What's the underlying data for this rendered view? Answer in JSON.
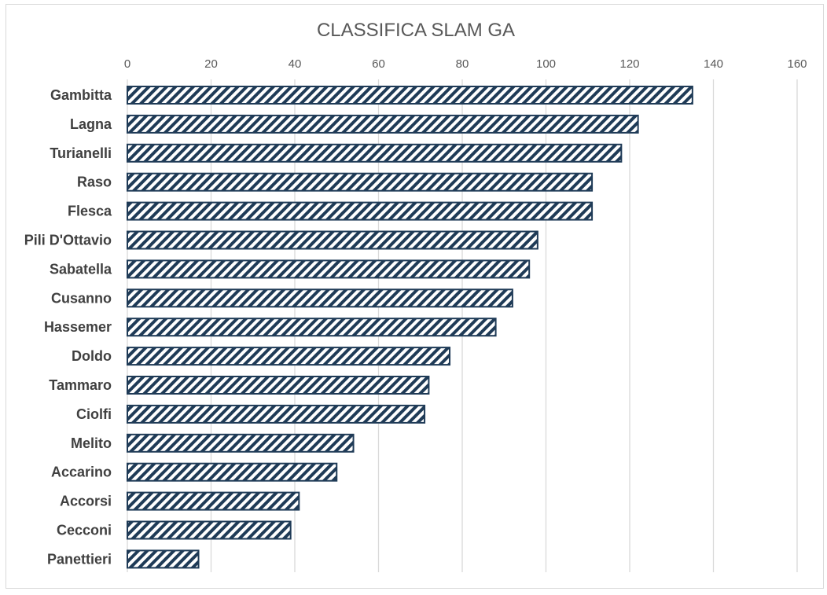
{
  "chart_data": {
    "type": "bar",
    "orientation": "horizontal",
    "title": "CLASSIFICA SLAM GA",
    "xlabel": "",
    "ylabel": "",
    "xlim": [
      0,
      160
    ],
    "x_ticks": [
      0,
      20,
      40,
      60,
      80,
      100,
      120,
      140,
      160
    ],
    "x_axis_position": "top",
    "grid": true,
    "legend": "none",
    "categories": [
      "Gambitta",
      "Lagna",
      "Turianelli",
      "Raso",
      "Flesca",
      "Pili D'Ottavio",
      "Sabatella",
      "Cusanno",
      "Hassemer",
      "Doldo",
      "Tammaro",
      "Ciolfi",
      "Melito",
      "Accarino",
      "Accorsi",
      "Cecconi",
      "Panettieri"
    ],
    "values": [
      135,
      122,
      118,
      111,
      111,
      98,
      96,
      92,
      88,
      77,
      72,
      71,
      54,
      50,
      41,
      39,
      17
    ],
    "bar_style": "diagonal-hatch",
    "bar_color": "#1f3b57",
    "grid_color": "#d9d9d9"
  }
}
